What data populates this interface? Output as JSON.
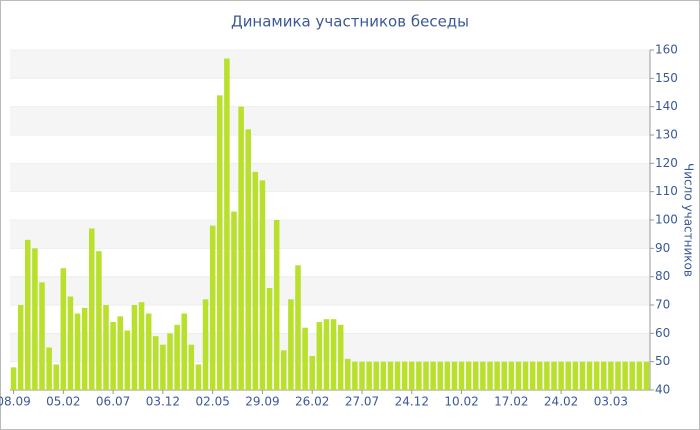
{
  "chart_data": {
    "type": "bar",
    "title": "Динамика участников беседы",
    "y_label": "Число участников",
    "color": "#b8e02c",
    "ylim": [
      40,
      160
    ],
    "yticks": [
      40,
      50,
      60,
      70,
      80,
      90,
      100,
      110,
      120,
      130,
      140,
      150,
      160
    ],
    "grid": true,
    "categories": [
      "08.09",
      null,
      null,
      null,
      null,
      null,
      null,
      "05.02",
      null,
      null,
      null,
      null,
      null,
      null,
      "06.07",
      null,
      null,
      null,
      null,
      null,
      null,
      "03.12",
      null,
      null,
      null,
      null,
      null,
      null,
      "02.05",
      null,
      null,
      null,
      null,
      null,
      null,
      "29.09",
      null,
      null,
      null,
      null,
      null,
      null,
      "26.02",
      null,
      null,
      null,
      null,
      null,
      null,
      "27.07",
      null,
      null,
      null,
      null,
      null,
      null,
      "24.12",
      null,
      null,
      null,
      null,
      null,
      null,
      "10.02",
      null,
      null,
      null,
      null,
      null,
      null,
      "17.02",
      null,
      null,
      null,
      null,
      null,
      null,
      "24.02",
      null,
      null,
      null,
      null,
      null,
      null,
      "03.03",
      null,
      null,
      null,
      null,
      null
    ],
    "values": [
      48,
      70,
      93,
      90,
      78,
      55,
      49,
      83,
      73,
      67,
      69,
      97,
      89,
      70,
      64,
      66,
      61,
      70,
      71,
      67,
      59,
      56,
      60,
      63,
      67,
      56,
      49,
      72,
      98,
      144,
      157,
      103,
      140,
      132,
      117,
      114,
      76,
      100,
      54,
      72,
      84,
      62,
      52,
      64,
      65,
      65,
      63,
      51,
      50,
      50,
      50,
      50,
      50,
      50,
      50,
      50,
      50,
      50,
      50,
      50,
      50,
      50,
      50,
      50,
      50,
      50,
      50,
      50,
      50,
      50,
      50,
      50,
      50,
      50,
      50,
      50,
      50,
      50,
      50,
      50,
      50,
      50,
      50,
      50,
      50,
      50,
      50,
      50,
      50,
      50
    ]
  }
}
